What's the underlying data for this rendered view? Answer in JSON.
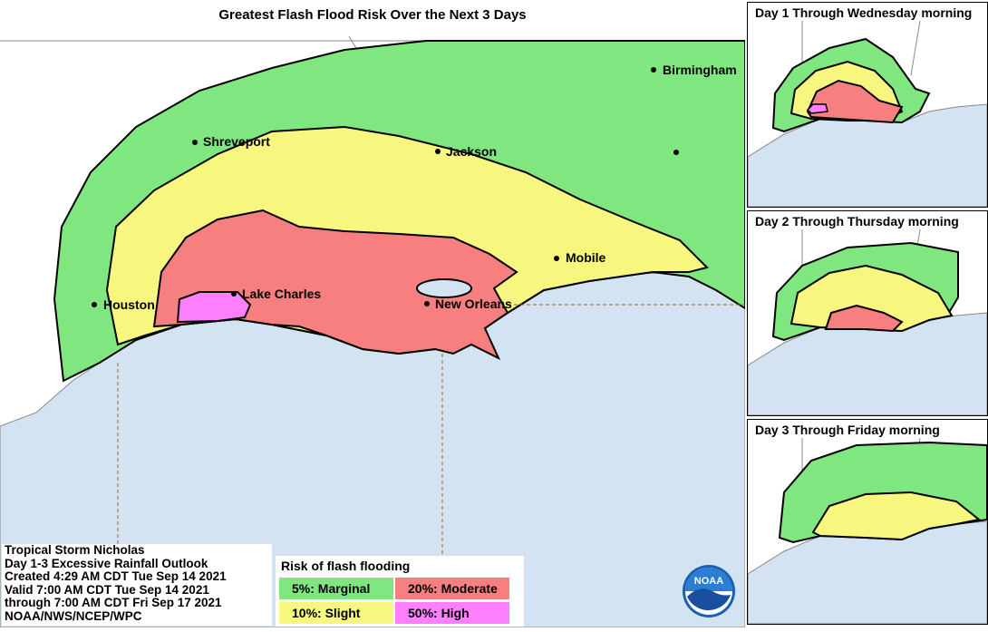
{
  "main": {
    "title": "Greatest Flash Flood Risk Over the Next 3 Days",
    "cities": [
      {
        "name": "Birmingham"
      },
      {
        "name": "Shreveport"
      },
      {
        "name": "Jackson"
      },
      {
        "name": "Mobile"
      },
      {
        "name": "Lake Charles"
      },
      {
        "name": "New Orleans"
      },
      {
        "name": "Houston"
      }
    ]
  },
  "insets": [
    {
      "title": "Day 1 Through Wednesday morning"
    },
    {
      "title": "Day 2 Through Thursday morning"
    },
    {
      "title": "Day 3 Through Friday morning"
    }
  ],
  "info": {
    "lines": [
      "Tropical Storm Nicholas",
      "Day 1-3 Excessive Rainfall Outlook",
      "Created 4:29 AM CDT Tue Sep 14 2021",
      "Valid 7:00 AM CDT Tue Sep 14 2021",
      "through 7:00 AM CDT Fri Sep 17 2021",
      "NOAA/NWS/NCEP/WPC"
    ]
  },
  "legend": {
    "title": "Risk of flash flooding",
    "items": [
      {
        "label": "5%: Marginal",
        "color": "#80e680"
      },
      {
        "label": "20%: Moderate",
        "color": "#f77f7f"
      },
      {
        "label": "10%: Slight",
        "color": "#f7f77f"
      },
      {
        "label": "50%: High",
        "color": "#ff80ff"
      }
    ]
  },
  "colors": {
    "ocean": "#d4e3f2",
    "land": "#ffffff",
    "marginal": "#80e680",
    "slight": "#f7f77f",
    "moderate": "#f77f7f",
    "high": "#ff80ff"
  },
  "logo": {
    "text": "NOAA"
  }
}
